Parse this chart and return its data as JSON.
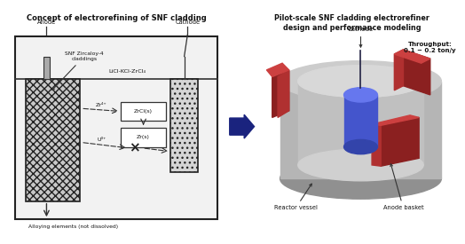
{
  "title_left": "Concept of electrorefining of SNF cladding",
  "title_right": "Pilot-scale SNF cladding electrorefiner\ndesign and performance modeling",
  "bg_color": "#ffffff",
  "anode_label": "Anode",
  "cathode_label": "Cathode",
  "salt_label": "LiCl-KCl-ZrCl₄",
  "snf_label": "SNF Zircaloy-4\ncladdings",
  "alloy_label": "Alloying elements (not dissolved)",
  "zr4_label": "Zr⁴⁺",
  "u3_label": "U³⁺",
  "zrcl_label": "ZrCl(s)",
  "zrs_label": "Zr(s)",
  "cathode_3d_label": "Cathode",
  "reactor_label": "Reactor vessel",
  "anode_basket_label": "Anode basket",
  "throughput_label": "Throughput:\n0.1 ~ 0.2 ton/y",
  "text_color": "#111111",
  "arrow_blue": "#1a237e"
}
